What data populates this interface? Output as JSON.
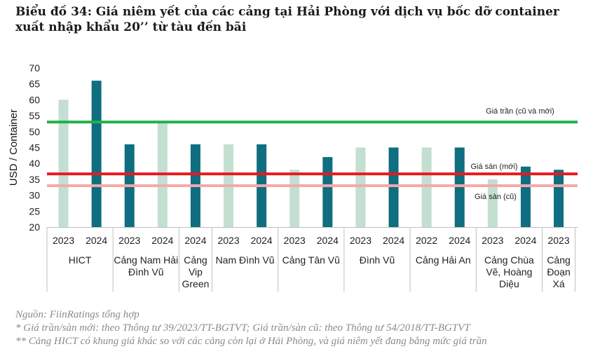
{
  "title_line1": "Biểu đồ 34: Giá niêm yết của các cảng tại Hải Phòng với dịch vụ bốc dỡ container",
  "title_line2": "xuất nhập khẩu 20’’ từ tàu đến bãi",
  "chart_data": {
    "type": "bar",
    "ylabel": "USD / Container",
    "ylim": [
      20,
      70
    ],
    "yticks": [
      20,
      25,
      30,
      35,
      40,
      45,
      50,
      55,
      60,
      65,
      70
    ],
    "bars": [
      {
        "year": "2023",
        "value": 60,
        "group": 0,
        "color": "#c3dfd1"
      },
      {
        "year": "2024",
        "value": 66,
        "group": 0,
        "color": "#0f6e7f"
      },
      {
        "year": "2023",
        "value": 46,
        "group": 1,
        "color": "#0f6e7f"
      },
      {
        "year": "2024",
        "value": 53,
        "group": 1,
        "color": "#c3dfd1"
      },
      {
        "year": "2024",
        "value": 46,
        "group": 2,
        "color": "#0f6e7f"
      },
      {
        "year": "2023",
        "value": 46,
        "group": 3,
        "color": "#c3dfd1"
      },
      {
        "year": "2024",
        "value": 46,
        "group": 3,
        "color": "#0f6e7f"
      },
      {
        "year": "2023",
        "value": 38,
        "group": 4,
        "color": "#c3dfd1"
      },
      {
        "year": "2024",
        "value": 42,
        "group": 4,
        "color": "#0f6e7f"
      },
      {
        "year": "2023",
        "value": 45,
        "group": 5,
        "color": "#c3dfd1"
      },
      {
        "year": "2024",
        "value": 45,
        "group": 5,
        "color": "#0f6e7f"
      },
      {
        "year": "2022",
        "value": 45,
        "group": 6,
        "color": "#c3dfd1"
      },
      {
        "year": "2024",
        "value": 45,
        "group": 6,
        "color": "#0f6e7f"
      },
      {
        "year": "2023",
        "value": 35,
        "group": 7,
        "color": "#c3dfd1"
      },
      {
        "year": "2024",
        "value": 39,
        "group": 7,
        "color": "#0f6e7f"
      },
      {
        "year": "2023",
        "value": 38,
        "group": 8,
        "color": "#0f6e7f"
      }
    ],
    "groups": [
      {
        "name_lines": [
          "HICT"
        ],
        "count": 2
      },
      {
        "name_lines": [
          "Cảng Nam Hải",
          "Đình Vũ"
        ],
        "count": 2
      },
      {
        "name_lines": [
          "Cảng",
          "Vip",
          "Green"
        ],
        "count": 1
      },
      {
        "name_lines": [
          "Nam Đình Vũ"
        ],
        "count": 2
      },
      {
        "name_lines": [
          "Cảng Tân Vũ"
        ],
        "count": 2
      },
      {
        "name_lines": [
          "Đình Vũ"
        ],
        "count": 2
      },
      {
        "name_lines": [
          "Cảng Hải An"
        ],
        "count": 2
      },
      {
        "name_lines": [
          "Cảng Chùa",
          "Vẽ, Hoàng",
          "Diệu"
        ],
        "count": 2
      },
      {
        "name_lines": [
          "Cảng",
          "Đoạn",
          "Xá"
        ],
        "count": 1
      }
    ],
    "reference_lines": [
      {
        "label": "Giá trần (cũ và mới)",
        "value": 53,
        "color": "#22b14c"
      },
      {
        "label": "Giá sàn (mới)",
        "value": 36.7,
        "color": "#e8191f"
      },
      {
        "label": "Giá sàn (cũ)",
        "value": 33,
        "color": "#f4a9a8"
      }
    ]
  },
  "notes": [
    "Nguồn: FiinRatings tổng hợp",
    "* Giá trần/sàn mới: theo Thông tư 39/2023/TT-BGTVT; Giá trần/sàn cũ: theo Thông tư 54/2018/TT-BGTVT",
    "** Cảng HICT có khung giá khác so với các cảng còn lại ở Hải Phòng, và giá niêm yết  đang bằng mức giá trần"
  ]
}
